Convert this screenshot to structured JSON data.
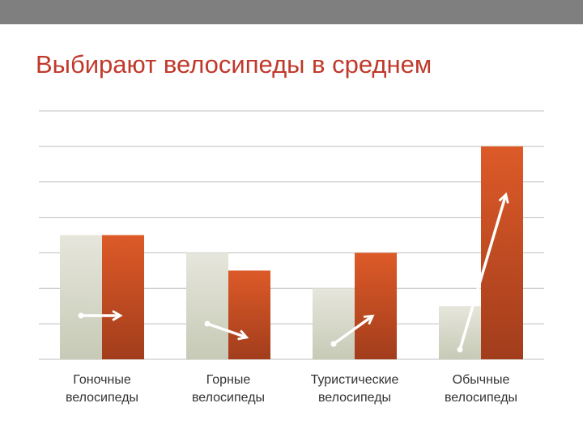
{
  "slide": {
    "title": "Выбирают велосипеды в среднем"
  },
  "colors": {
    "top_bar": "#7f7f7f",
    "title": "#c0392b",
    "series_1": "#e4e4da",
    "series_2": "#d9572a",
    "gridline": "#bfbfbf",
    "arrow": "#ffffff"
  },
  "chart_data": {
    "type": "bar",
    "categories": [
      [
        "Гоночные",
        "велосипеды"
      ],
      [
        "Горные",
        "велосипеды"
      ],
      [
        "Туристические",
        "велосипеды"
      ],
      [
        "Обычные",
        "велосипеды"
      ]
    ],
    "series": [
      {
        "values": [
          3.5,
          3.0,
          2.0,
          1.5
        ],
        "color": "#e4e4da"
      },
      {
        "values": [
          3.5,
          2.5,
          3.0,
          6.0
        ],
        "color": "#d9572a"
      }
    ],
    "ylim": [
      0,
      7
    ],
    "grid": true,
    "legend": "none",
    "annotations": "white arrows from top of first bar to top of second bar in each group"
  }
}
